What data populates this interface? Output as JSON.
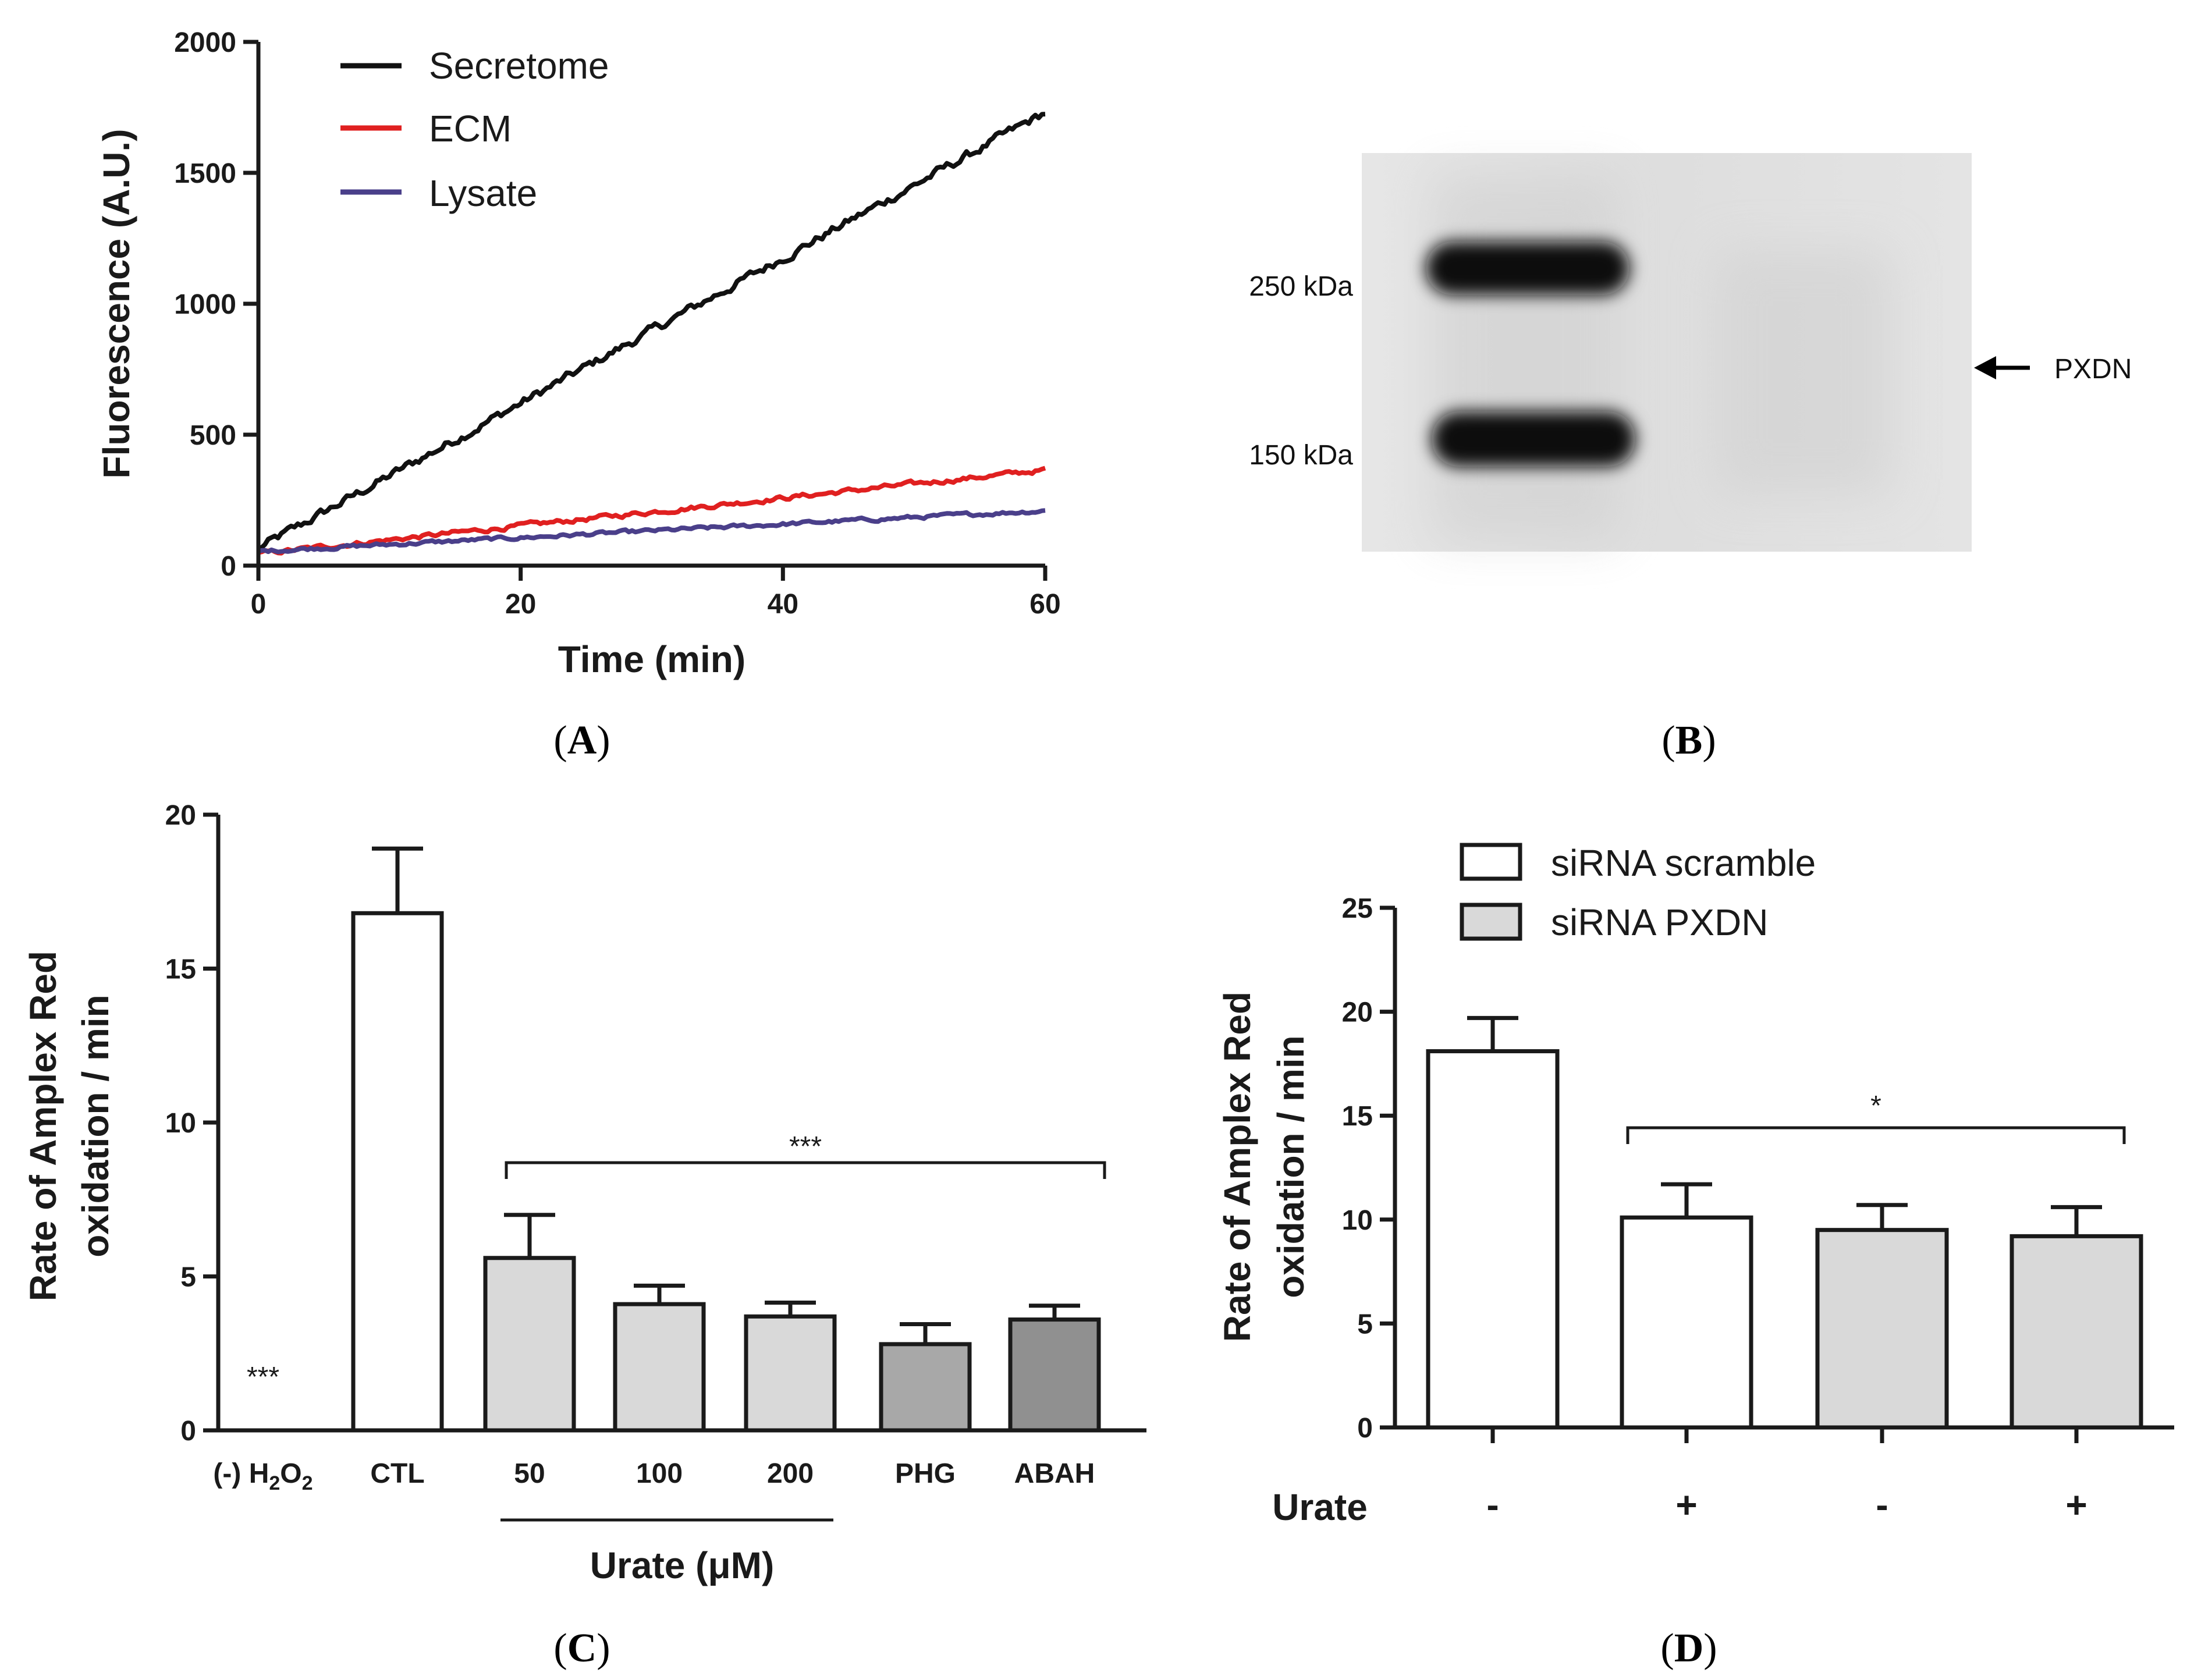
{
  "chart_data": [
    {
      "panel": "A",
      "type": "line",
      "xlabel": "Time (min)",
      "ylabel": "Fluorescence (A.U.)",
      "xlim": [
        0,
        60
      ],
      "ylim": [
        0,
        2000
      ],
      "xticks": [
        "0",
        "20",
        "40",
        "60"
      ],
      "yticks": [
        "0",
        "500",
        "1000",
        "1500",
        "2000"
      ],
      "legend_position": "top-left",
      "series": [
        {
          "name": "Secretome",
          "color": "#111111",
          "start": 65,
          "end": 1730,
          "noise": 18
        },
        {
          "name": "ECM",
          "color": "#e02020",
          "start": 45,
          "end": 365,
          "noise": 9
        },
        {
          "name": "Lysate",
          "color": "#4a3f8a",
          "start": 55,
          "end": 210,
          "noise": 7
        }
      ]
    },
    {
      "panel": "C",
      "type": "bar",
      "ylabel_line1": "Rate of Amplex Red",
      "ylabel_line2": "oxidation / min",
      "ylim": [
        0,
        20
      ],
      "yticks": [
        "0",
        "5",
        "10",
        "15",
        "20"
      ],
      "categories": [
        "(-) H2O2",
        "CTL",
        "50",
        "100",
        "200",
        "PHG",
        "ABAH"
      ],
      "h2o2_parts": {
        "prefix": "(-) H",
        "sub1": "2",
        "mid": "O",
        "sub2": "2"
      },
      "values": [
        0,
        16.8,
        5.6,
        4.1,
        3.7,
        2.8,
        3.6
      ],
      "errors": [
        0,
        2.1,
        1.4,
        0.6,
        0.45,
        0.65,
        0.45
      ],
      "fills": [
        "#ffffff",
        "#ffffff",
        "#d9d9d9",
        "#d9d9d9",
        "#d9d9d9",
        "#a8a8a8",
        "#909090"
      ],
      "group_label": "Urate (μM)",
      "significance": "***",
      "significance_control": "***"
    },
    {
      "panel": "D",
      "type": "bar",
      "ylabel_line1": "Rate of Amplex Red",
      "ylabel_line2": "oxidation / min",
      "ylim": [
        0,
        25
      ],
      "yticks": [
        "0",
        "5",
        "10",
        "15",
        "20",
        "25"
      ],
      "row_label": "Urate",
      "categories": [
        "-",
        "+",
        "-",
        "+"
      ],
      "values": [
        18.1,
        10.1,
        9.5,
        9.2
      ],
      "errors": [
        1.6,
        1.6,
        1.2,
        1.4
      ],
      "fills": [
        "#ffffff",
        "#ffffff",
        "#d9d9d9",
        "#d9d9d9"
      ],
      "legend": [
        {
          "name": "siRNA scramble",
          "color": "#ffffff"
        },
        {
          "name": "siRNA PXDN",
          "color": "#d9d9d9"
        }
      ],
      "legend_position": "top",
      "significance": "*"
    }
  ],
  "blot": {
    "marker_250": "250 kDa",
    "marker_150": "150 kDa",
    "target_label": "PXDN"
  },
  "panel_labels": {
    "A": {
      "open": "(",
      "letter": "A",
      "close": ")"
    },
    "B": {
      "open": "(",
      "letter": "B",
      "close": ")"
    },
    "C": {
      "open": "(",
      "letter": "C",
      "close": ")"
    },
    "D": {
      "open": "(",
      "letter": "D",
      "close": ")"
    }
  }
}
